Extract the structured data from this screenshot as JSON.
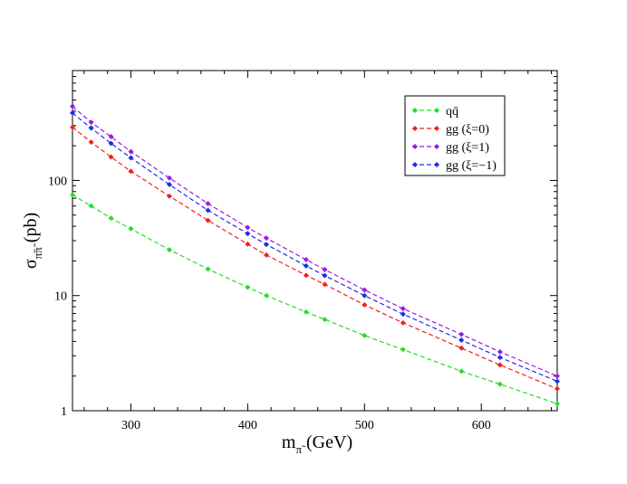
{
  "chart_data": {
    "type": "line",
    "title": "",
    "xlabel": "m_π̃ (GeV)",
    "ylabel": "σ_π̃π̃ (pb)",
    "xlabel_main": "m",
    "xlabel_sub": "π̃",
    "xlabel_unit": " (GeV)",
    "ylabel_main": "σ",
    "ylabel_sub": "π̃π̃",
    "ylabel_unit": " (pb)",
    "xlim": [
      250,
      665
    ],
    "ylim": [
      1,
      900
    ],
    "yscale": "log",
    "xticks": [
      300,
      400,
      500,
      600
    ],
    "xtick_labels": [
      "300",
      "400",
      "500",
      "600"
    ],
    "yticks": [
      1,
      10,
      100
    ],
    "ytick_labels": [
      "1",
      "10",
      "100"
    ],
    "legend_position": "top-right",
    "series": [
      {
        "name": "qq̄",
        "color": "#22e022",
        "x": [
          250,
          266,
          283,
          300,
          333,
          366,
          400,
          416,
          450,
          466,
          500,
          533,
          583,
          616,
          665
        ],
        "y": [
          75,
          60,
          47,
          38,
          25,
          17,
          11.8,
          10,
          7.2,
          6.2,
          4.5,
          3.4,
          2.2,
          1.7,
          1.15
        ]
      },
      {
        "name": "gg (ξ=0)",
        "color": "#f02020",
        "x": [
          250,
          266,
          283,
          300,
          333,
          366,
          400,
          416,
          450,
          466,
          500,
          533,
          583,
          616,
          665
        ],
        "y": [
          290,
          215,
          160,
          120,
          73,
          45,
          28,
          22.5,
          15,
          12.5,
          8.3,
          5.8,
          3.5,
          2.5,
          1.55
        ]
      },
      {
        "name": "gg (ξ=1)",
        "color": "#9a1ae0",
        "x": [
          250,
          266,
          283,
          300,
          333,
          366,
          400,
          416,
          450,
          466,
          500,
          533,
          583,
          616,
          665
        ],
        "y": [
          440,
          320,
          240,
          178,
          105,
          63,
          39,
          31.5,
          20.5,
          16.8,
          11.2,
          7.7,
          4.6,
          3.25,
          2.0
        ]
      },
      {
        "name": "gg (ξ=−1)",
        "color": "#1a2ee8",
        "x": [
          250,
          266,
          283,
          300,
          333,
          366,
          400,
          416,
          450,
          466,
          500,
          533,
          583,
          616,
          665
        ],
        "y": [
          385,
          285,
          210,
          157,
          92,
          55,
          34.5,
          27.8,
          18.1,
          14.9,
          10,
          6.9,
          4.1,
          2.9,
          1.8
        ]
      }
    ]
  }
}
